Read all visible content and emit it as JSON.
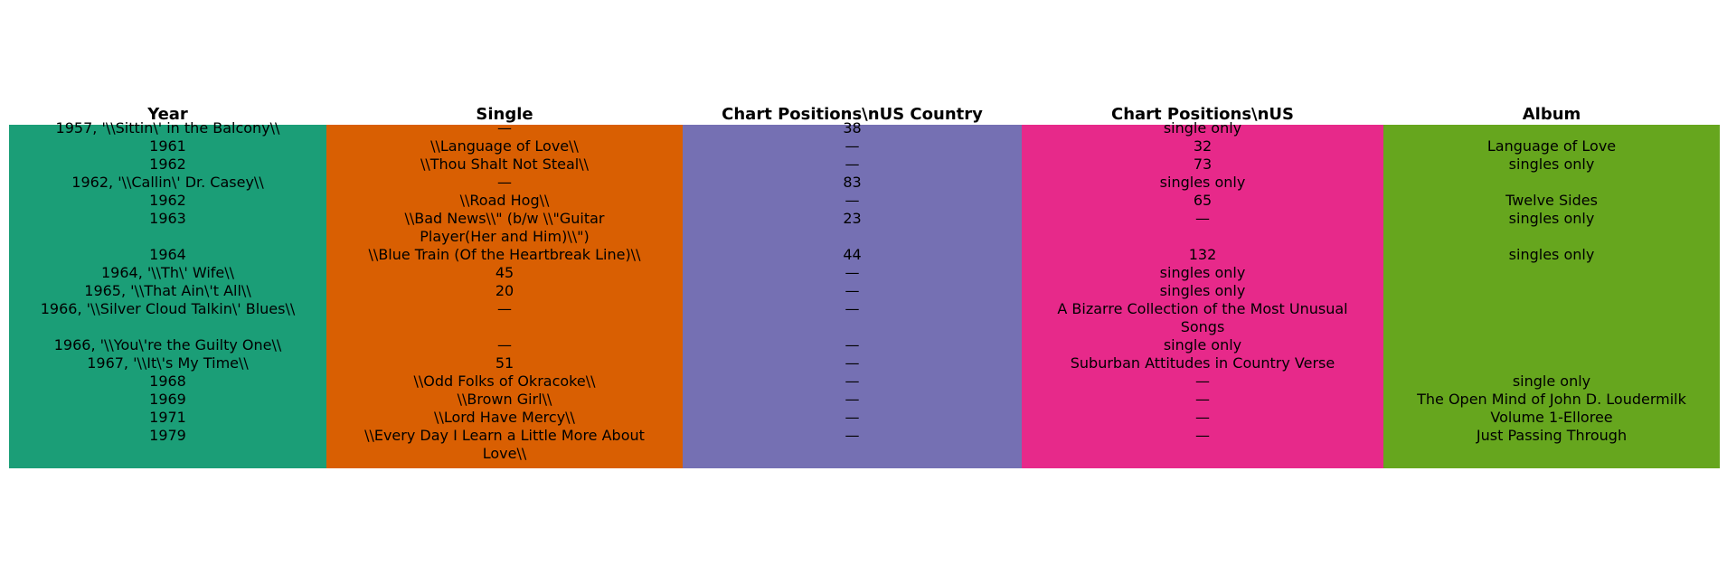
{
  "chart_data": {
    "type": "table",
    "columns": [
      {
        "header": "Year",
        "color": "#1b9e77"
      },
      {
        "header": "Single",
        "color": "#d95f02"
      },
      {
        "header": "Chart Positions\\nUS Country",
        "color": "#7570b3"
      },
      {
        "header": "Chart Positions\\nUS",
        "color": "#e7298a"
      },
      {
        "header": "Album",
        "color": "#66a61e"
      }
    ],
    "rows": [
      [
        "1957, '\\\\Sittin\\' in the Balcony\\\\",
        "—",
        "38",
        "single only",
        ""
      ],
      [
        "1961",
        "\\\\Language of Love\\\\",
        "—",
        "32",
        "Language of Love"
      ],
      [
        "1962",
        "\\\\Thou Shalt Not Steal\\\\",
        "—",
        "73",
        "singles only"
      ],
      [
        "1962, '\\\\Callin\\' Dr. Casey\\\\",
        "—",
        "83",
        "singles only",
        ""
      ],
      [
        "1962",
        "\\\\Road Hog\\\\",
        "—",
        "65",
        "Twelve Sides"
      ],
      [
        "1963",
        "\\\\Bad News\\\\\" (b/w \\\\\"Guitar Player(Her and Him)\\\\\")",
        "23",
        "—",
        "singles only"
      ],
      [
        "1964",
        "\\\\Blue Train (Of the Heartbreak Line)\\\\",
        "44",
        "132",
        "singles only"
      ],
      [
        "1964, '\\\\Th\\' Wife\\\\",
        "45",
        "—",
        "singles only",
        ""
      ],
      [
        "1965, '\\\\That Ain\\'t All\\\\",
        "20",
        "—",
        "singles only",
        ""
      ],
      [
        "1966, '\\\\Silver Cloud Talkin\\' Blues\\\\",
        "—",
        "—",
        "A Bizarre Collection of the Most Unusual Songs",
        ""
      ],
      [
        "1966, '\\\\You\\'re the Guilty One\\\\",
        "—",
        "—",
        "single only",
        ""
      ],
      [
        "1967, '\\\\It\\'s My Time\\\\",
        "51",
        "—",
        "Suburban Attitudes in Country Verse",
        ""
      ],
      [
        "1968",
        "\\\\Odd Folks of Okracoke\\\\",
        "—",
        "—",
        "single only"
      ],
      [
        "1969",
        "\\\\Brown Girl\\\\",
        "—",
        "—",
        "The Open Mind of John D. Loudermilk"
      ],
      [
        "1971",
        "\\\\Lord Have Mercy\\\\",
        "—",
        "—",
        "Volume 1-Elloree"
      ],
      [
        "1979",
        "\\\\Every Day I Learn a Little More About Love\\\\",
        "—",
        "—",
        "Just Passing Through"
      ]
    ]
  }
}
